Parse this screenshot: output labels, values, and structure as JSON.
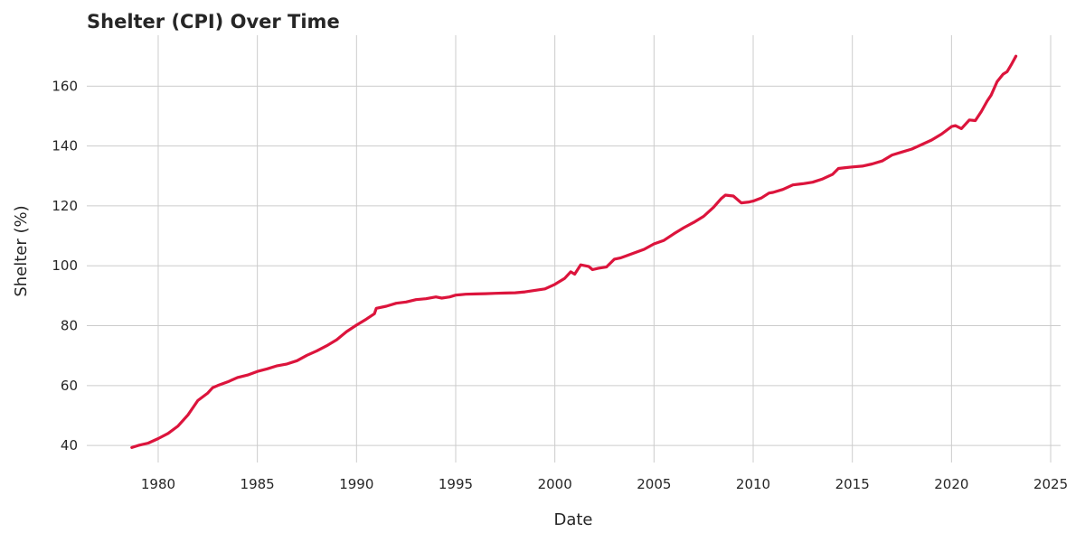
{
  "chart_data": {
    "type": "line",
    "title": "Shelter (CPI) Over Time",
    "xlabel": "Date",
    "ylabel": "Shelter (%)",
    "xlim": [
      1976.4,
      2025.5
    ],
    "ylim": [
      34.3,
      177.0
    ],
    "xticks": [
      1980,
      1985,
      1990,
      1995,
      2000,
      2005,
      2010,
      2015,
      2020,
      2025
    ],
    "yticks": [
      40,
      60,
      80,
      100,
      120,
      140,
      160
    ],
    "grid": true,
    "series": [
      {
        "color": "#dc143c",
        "x": [
          1978.67,
          1979.0,
          1979.5,
          1980.0,
          1980.5,
          1981.0,
          1981.5,
          1982.0,
          1982.5,
          1982.75,
          1983.0,
          1983.5,
          1984.0,
          1984.5,
          1985.0,
          1985.5,
          1986.0,
          1986.5,
          1987.0,
          1987.5,
          1988.0,
          1988.5,
          1989.0,
          1989.5,
          1990.0,
          1990.5,
          1990.9,
          1991.0,
          1991.5,
          1992.0,
          1992.5,
          1993.0,
          1993.5,
          1994.0,
          1994.3,
          1994.7,
          1995.0,
          1995.5,
          1996.0,
          1996.5,
          1997.0,
          1997.5,
          1998.0,
          1998.5,
          1999.0,
          1999.5,
          2000.0,
          2000.5,
          2000.8,
          2001.0,
          2001.3,
          2001.7,
          2001.9,
          2002.2,
          2002.6,
          2003.0,
          2003.3,
          2003.6,
          2004.0,
          2004.5,
          2005.0,
          2005.5,
          2006.0,
          2006.5,
          2007.0,
          2007.5,
          2008.0,
          2008.4,
          2008.6,
          2009.0,
          2009.4,
          2009.8,
          2010.0,
          2010.4,
          2010.8,
          2011.0,
          2011.5,
          2012.0,
          2012.5,
          2013.0,
          2013.5,
          2014.0,
          2014.3,
          2014.7,
          2015.0,
          2015.5,
          2016.0,
          2016.5,
          2017.0,
          2017.5,
          2018.0,
          2018.5,
          2019.0,
          2019.5,
          2020.0,
          2020.2,
          2020.5,
          2020.9,
          2021.2,
          2021.5,
          2021.8,
          2022.0,
          2022.3,
          2022.6,
          2022.8,
          2023.0,
          2023.25
        ],
        "y": [
          39.3,
          40.0,
          40.8,
          42.3,
          44.0,
          46.5,
          50.2,
          55.0,
          57.5,
          59.3,
          60.0,
          61.2,
          62.7,
          63.5,
          64.7,
          65.6,
          66.6,
          67.2,
          68.3,
          70.1,
          71.6,
          73.3,
          75.3,
          78.0,
          80.2,
          82.2,
          84.0,
          85.8,
          86.5,
          87.5,
          87.9,
          88.7,
          89.0,
          89.6,
          89.2,
          89.6,
          90.2,
          90.5,
          90.6,
          90.7,
          90.8,
          90.9,
          91.0,
          91.3,
          91.8,
          92.3,
          93.8,
          95.8,
          98.0,
          97.2,
          100.3,
          99.8,
          98.7,
          99.2,
          99.6,
          102.2,
          102.6,
          103.3,
          104.3,
          105.5,
          107.3,
          108.5,
          110.7,
          112.7,
          114.5,
          116.5,
          119.5,
          122.5,
          123.6,
          123.3,
          121.0,
          121.3,
          121.6,
          122.6,
          124.3,
          124.5,
          125.5,
          127.0,
          127.4,
          127.9,
          129.0,
          130.5,
          132.5,
          132.8,
          133.0,
          133.3,
          134.0,
          135.0,
          137.0,
          138.0,
          139.0,
          140.5,
          142.0,
          144.0,
          146.5,
          146.8,
          145.8,
          148.7,
          148.5,
          151.5,
          155.0,
          157.0,
          161.5,
          164.0,
          164.8,
          167.0,
          170.0
        ]
      }
    ]
  }
}
